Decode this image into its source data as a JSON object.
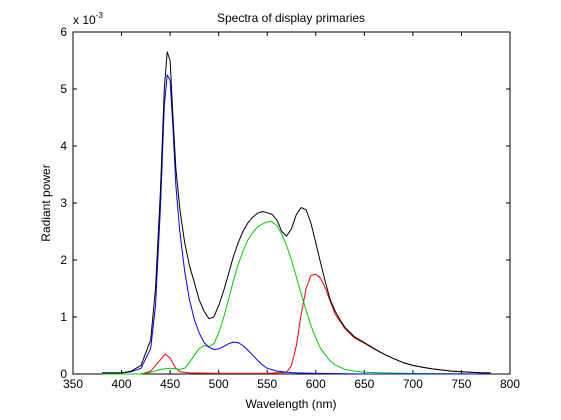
{
  "chart_data": {
    "type": "line",
    "title": "Spectra of display primaries",
    "xlabel": "Wavelength (nm)",
    "ylabel": "Radiant power",
    "y_exponent_label": "x 10",
    "y_exponent_power": "-3",
    "xlim": [
      350,
      800
    ],
    "ylim": [
      0,
      6
    ],
    "xticks": [
      "350",
      "400",
      "450",
      "500",
      "550",
      "600",
      "650",
      "700",
      "750",
      "800"
    ],
    "yticks": [
      "0",
      "1",
      "2",
      "3",
      "4",
      "5",
      "6"
    ],
    "grid": false,
    "legend": "none",
    "series": [
      {
        "color": "#000000",
        "points": [
          [
            380,
            0.02
          ],
          [
            390,
            0.02
          ],
          [
            400,
            0.02
          ],
          [
            410,
            0.05
          ],
          [
            420,
            0.15
          ],
          [
            430,
            0.6
          ],
          [
            435,
            1.5
          ],
          [
            440,
            3.2
          ],
          [
            444,
            5.0
          ],
          [
            447,
            5.65
          ],
          [
            450,
            5.5
          ],
          [
            453,
            4.5
          ],
          [
            456,
            3.6
          ],
          [
            460,
            2.9
          ],
          [
            465,
            2.3
          ],
          [
            470,
            1.9
          ],
          [
            475,
            1.6
          ],
          [
            480,
            1.3
          ],
          [
            485,
            1.1
          ],
          [
            490,
            0.97
          ],
          [
            495,
            1.0
          ],
          [
            500,
            1.2
          ],
          [
            505,
            1.45
          ],
          [
            510,
            1.75
          ],
          [
            515,
            2.05
          ],
          [
            520,
            2.3
          ],
          [
            525,
            2.5
          ],
          [
            530,
            2.65
          ],
          [
            535,
            2.75
          ],
          [
            540,
            2.82
          ],
          [
            545,
            2.85
          ],
          [
            550,
            2.83
          ],
          [
            555,
            2.8
          ],
          [
            560,
            2.7
          ],
          [
            565,
            2.5
          ],
          [
            570,
            2.42
          ],
          [
            575,
            2.55
          ],
          [
            580,
            2.8
          ],
          [
            585,
            2.92
          ],
          [
            590,
            2.88
          ],
          [
            595,
            2.65
          ],
          [
            600,
            2.3
          ],
          [
            605,
            1.95
          ],
          [
            610,
            1.6
          ],
          [
            615,
            1.3
          ],
          [
            620,
            1.1
          ],
          [
            625,
            0.95
          ],
          [
            630,
            0.82
          ],
          [
            640,
            0.65
          ],
          [
            650,
            0.55
          ],
          [
            660,
            0.45
          ],
          [
            670,
            0.35
          ],
          [
            680,
            0.27
          ],
          [
            690,
            0.2
          ],
          [
            700,
            0.15
          ],
          [
            710,
            0.12
          ],
          [
            720,
            0.09
          ],
          [
            730,
            0.07
          ],
          [
            740,
            0.05
          ],
          [
            750,
            0.04
          ],
          [
            760,
            0.03
          ],
          [
            770,
            0.02
          ],
          [
            780,
            0.02
          ]
        ]
      },
      {
        "color": "#0000ff",
        "points": [
          [
            380,
            0.02
          ],
          [
            390,
            0.02
          ],
          [
            400,
            0.02
          ],
          [
            410,
            0.04
          ],
          [
            420,
            0.1
          ],
          [
            430,
            0.45
          ],
          [
            435,
            1.2
          ],
          [
            440,
            2.9
          ],
          [
            444,
            4.7
          ],
          [
            447,
            5.25
          ],
          [
            450,
            5.15
          ],
          [
            453,
            4.3
          ],
          [
            456,
            3.3
          ],
          [
            460,
            2.5
          ],
          [
            465,
            1.8
          ],
          [
            470,
            1.3
          ],
          [
            475,
            0.95
          ],
          [
            480,
            0.72
          ],
          [
            485,
            0.55
          ],
          [
            490,
            0.47
          ],
          [
            495,
            0.43
          ],
          [
            500,
            0.44
          ],
          [
            505,
            0.48
          ],
          [
            510,
            0.53
          ],
          [
            515,
            0.56
          ],
          [
            520,
            0.55
          ],
          [
            525,
            0.5
          ],
          [
            530,
            0.42
          ],
          [
            535,
            0.33
          ],
          [
            540,
            0.24
          ],
          [
            545,
            0.16
          ],
          [
            550,
            0.1
          ],
          [
            560,
            0.05
          ],
          [
            570,
            0.03
          ],
          [
            580,
            0.02
          ],
          [
            600,
            0.01
          ],
          [
            650,
            0.0
          ],
          [
            700,
            0.0
          ],
          [
            780,
            0.0
          ]
        ]
      },
      {
        "color": "#00cc00",
        "points": [
          [
            380,
            0.0
          ],
          [
            420,
            0.0
          ],
          [
            430,
            0.03
          ],
          [
            440,
            0.08
          ],
          [
            450,
            0.1
          ],
          [
            460,
            0.08
          ],
          [
            465,
            0.1
          ],
          [
            470,
            0.2
          ],
          [
            475,
            0.33
          ],
          [
            480,
            0.45
          ],
          [
            485,
            0.5
          ],
          [
            490,
            0.48
          ],
          [
            495,
            0.53
          ],
          [
            500,
            0.72
          ],
          [
            505,
            0.98
          ],
          [
            510,
            1.3
          ],
          [
            515,
            1.62
          ],
          [
            520,
            1.92
          ],
          [
            525,
            2.15
          ],
          [
            530,
            2.35
          ],
          [
            535,
            2.48
          ],
          [
            540,
            2.58
          ],
          [
            545,
            2.63
          ],
          [
            550,
            2.67
          ],
          [
            555,
            2.67
          ],
          [
            560,
            2.6
          ],
          [
            565,
            2.45
          ],
          [
            570,
            2.25
          ],
          [
            575,
            2.0
          ],
          [
            580,
            1.7
          ],
          [
            585,
            1.4
          ],
          [
            590,
            1.12
          ],
          [
            595,
            0.85
          ],
          [
            600,
            0.63
          ],
          [
            605,
            0.45
          ],
          [
            610,
            0.33
          ],
          [
            615,
            0.23
          ],
          [
            620,
            0.16
          ],
          [
            630,
            0.08
          ],
          [
            640,
            0.05
          ],
          [
            650,
            0.03
          ],
          [
            670,
            0.02
          ],
          [
            700,
            0.01
          ],
          [
            780,
            0.0
          ]
        ]
      },
      {
        "color": "#ff0000",
        "points": [
          [
            380,
            0.0
          ],
          [
            420,
            0.0
          ],
          [
            430,
            0.05
          ],
          [
            440,
            0.25
          ],
          [
            445,
            0.35
          ],
          [
            450,
            0.28
          ],
          [
            455,
            0.12
          ],
          [
            460,
            0.04
          ],
          [
            470,
            0.02
          ],
          [
            500,
            0.01
          ],
          [
            550,
            0.01
          ],
          [
            570,
            0.03
          ],
          [
            575,
            0.15
          ],
          [
            580,
            0.5
          ],
          [
            585,
            1.05
          ],
          [
            590,
            1.5
          ],
          [
            595,
            1.73
          ],
          [
            600,
            1.75
          ],
          [
            605,
            1.68
          ],
          [
            610,
            1.5
          ],
          [
            615,
            1.27
          ],
          [
            620,
            1.05
          ],
          [
            625,
            0.92
          ],
          [
            630,
            0.8
          ],
          [
            640,
            0.63
          ],
          [
            650,
            0.54
          ],
          [
            660,
            0.44
          ],
          [
            670,
            0.35
          ],
          [
            680,
            0.27
          ],
          [
            690,
            0.2
          ],
          [
            700,
            0.15
          ],
          [
            710,
            0.12
          ],
          [
            720,
            0.09
          ],
          [
            730,
            0.07
          ],
          [
            740,
            0.05
          ],
          [
            750,
            0.04
          ],
          [
            760,
            0.03
          ],
          [
            770,
            0.02
          ],
          [
            780,
            0.02
          ]
        ]
      }
    ]
  }
}
